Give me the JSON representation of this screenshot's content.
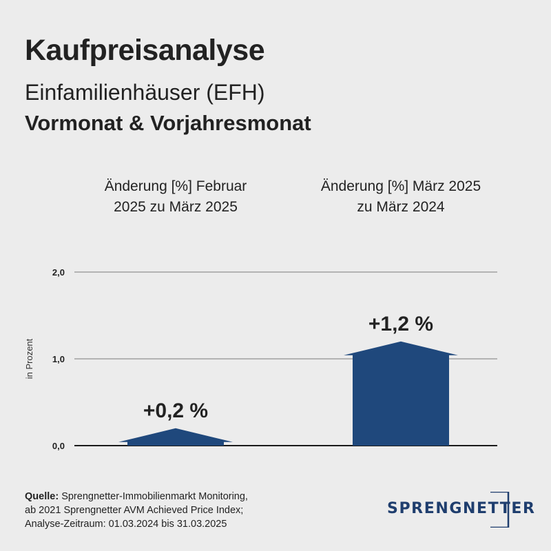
{
  "header": {
    "title": "Kaufpreisanalyse",
    "subtitle": "Einfamilienhäuser (EFH)",
    "subtitle2": "Vormonat & Vorjahresmonat"
  },
  "chart_data": {
    "type": "bar",
    "categories": [
      "Änderung [%] Februar 2025 zu März 2025",
      "Änderung [%] März 2025 zu März 2024"
    ],
    "category_lines": [
      [
        "Änderung [%] Februar",
        "2025 zu März 2025"
      ],
      [
        "Änderung [%] März 2025",
        "zu März 2024"
      ]
    ],
    "values": [
      0.2,
      1.2
    ],
    "data_labels": [
      "+0,2 %",
      "+1,2 %"
    ],
    "ylabel": "in Prozent",
    "ylim": [
      0,
      2
    ],
    "yticks": [
      0,
      1,
      2
    ],
    "ytick_labels": [
      "0,0",
      "1,0",
      "2,0"
    ],
    "grid": true,
    "bar_color": "#1f487c"
  },
  "footer": {
    "source_label": "Quelle:",
    "source_text": "Sprengnetter-Immobilienmarkt Monitoring,",
    "line2": "ab 2021 Sprengnetter AVM Achieved Price Index;",
    "line3": "Analyse-Zeitraum: 01.03.2024 bis 31.03.2025"
  },
  "logo": {
    "text": "SPRENGNETTER",
    "color": "#1f3e6e"
  }
}
